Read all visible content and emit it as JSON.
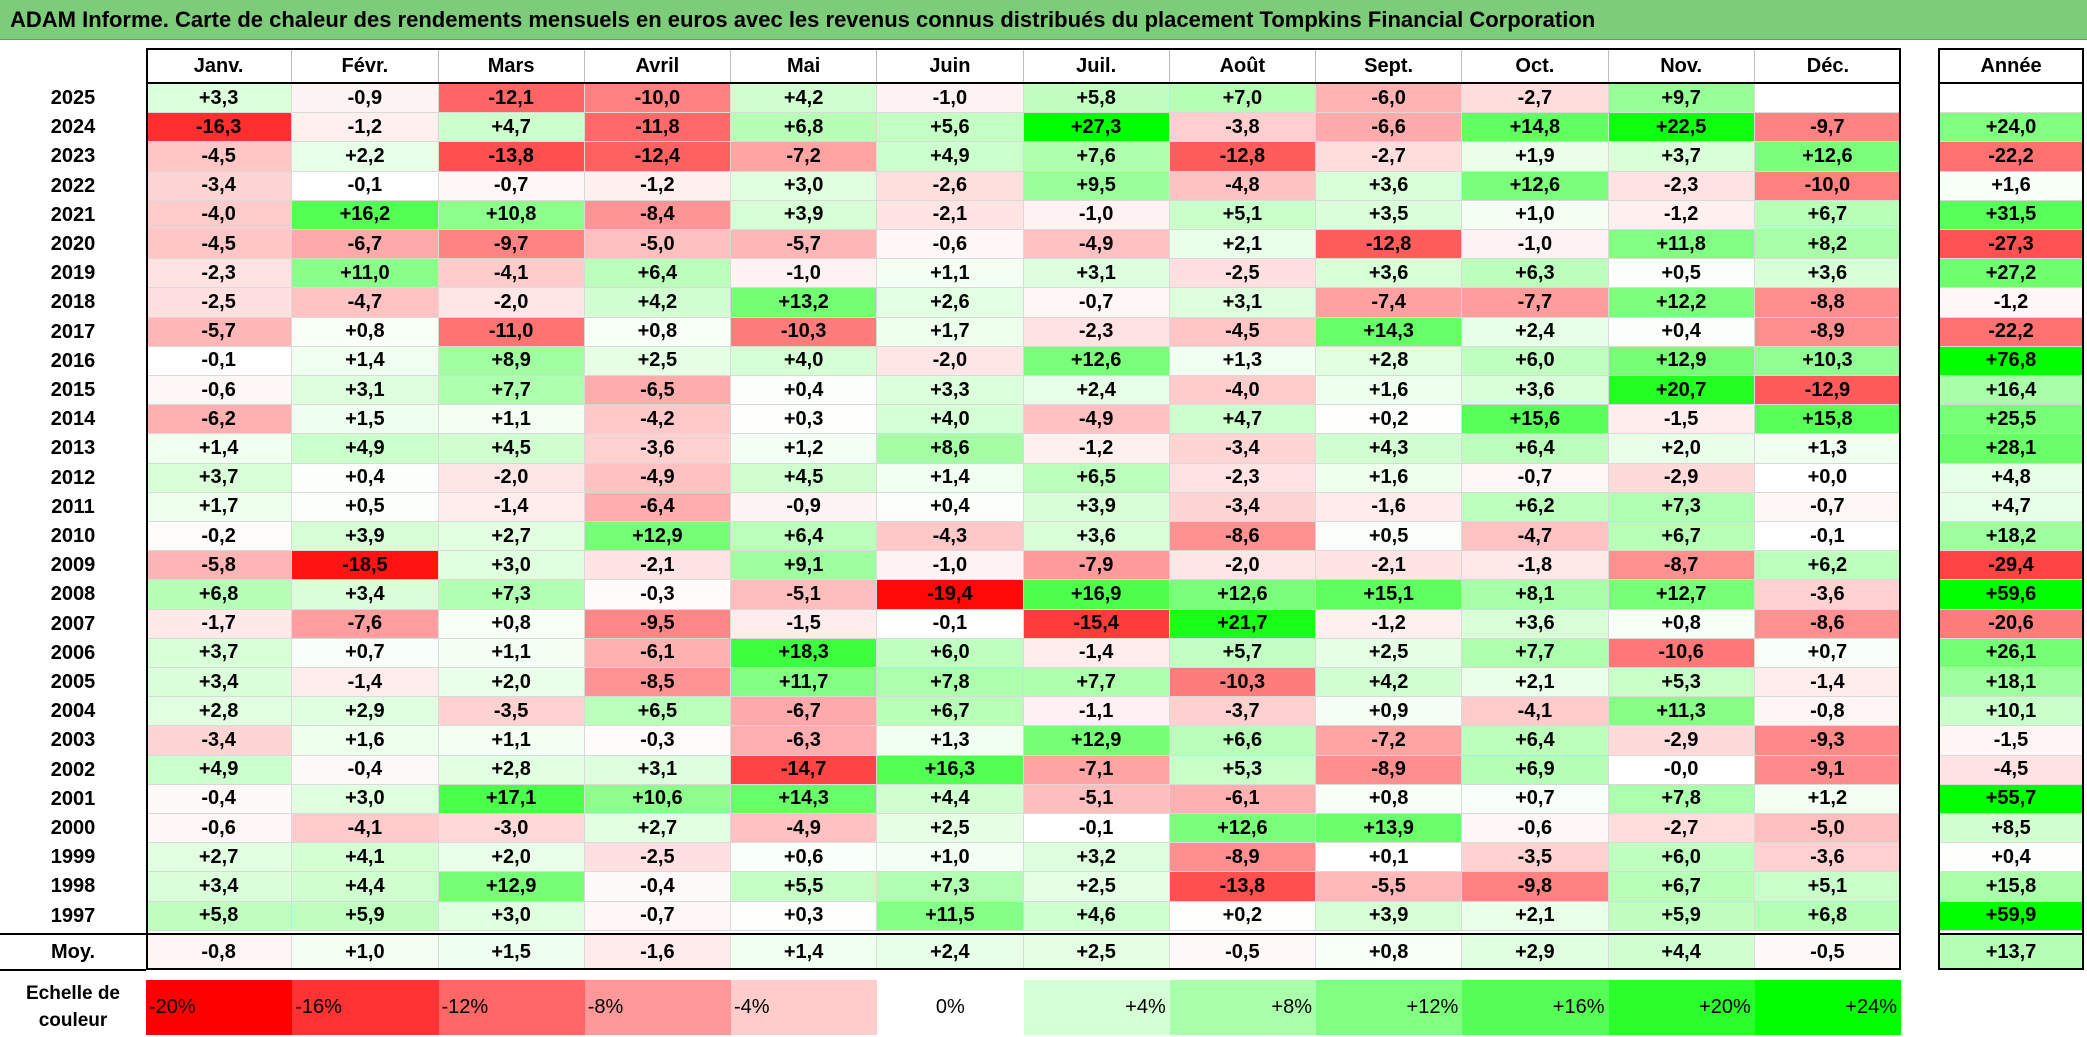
{
  "title": "ADAM Informe. Carte de chaleur des rendements mensuels en euros avec les revenus connus distribués du placement Tompkins Financial Corporation",
  "chart_data": {
    "type": "heatmap",
    "months": [
      "Janv.",
      "Févr.",
      "Mars",
      "Avril",
      "Mai",
      "Juin",
      "Juil.",
      "Août",
      "Sept.",
      "Oct.",
      "Nov.",
      "Déc."
    ],
    "year_column_label": "Année",
    "rows": [
      {
        "year": "2025",
        "values": [
          "+3,3",
          "-0,9",
          "-12,1",
          "-10,0",
          "+4,2",
          "-1,0",
          "+5,8",
          "+7,0",
          "-6,0",
          "-2,7",
          "+9,7",
          ""
        ],
        "annual": ""
      },
      {
        "year": "2024",
        "values": [
          "-16,3",
          "-1,2",
          "+4,7",
          "-11,8",
          "+6,8",
          "+5,6",
          "+27,3",
          "-3,8",
          "-6,6",
          "+14,8",
          "+22,5",
          "-9,7"
        ],
        "annual": "+24,0"
      },
      {
        "year": "2023",
        "values": [
          "-4,5",
          "+2,2",
          "-13,8",
          "-12,4",
          "-7,2",
          "+4,9",
          "+7,6",
          "-12,8",
          "-2,7",
          "+1,9",
          "+3,7",
          "+12,6"
        ],
        "annual": "-22,2"
      },
      {
        "year": "2022",
        "values": [
          "-3,4",
          "-0,1",
          "-0,7",
          "-1,2",
          "+3,0",
          "-2,6",
          "+9,5",
          "-4,8",
          "+3,6",
          "+12,6",
          "-2,3",
          "-10,0"
        ],
        "annual": "+1,6"
      },
      {
        "year": "2021",
        "values": [
          "-4,0",
          "+16,2",
          "+10,8",
          "-8,4",
          "+3,9",
          "-2,1",
          "-1,0",
          "+5,1",
          "+3,5",
          "+1,0",
          "-1,2",
          "+6,7"
        ],
        "annual": "+31,5"
      },
      {
        "year": "2020",
        "values": [
          "-4,5",
          "-6,7",
          "-9,7",
          "-5,0",
          "-5,7",
          "-0,6",
          "-4,9",
          "+2,1",
          "-12,8",
          "-1,0",
          "+11,8",
          "+8,2"
        ],
        "annual": "-27,3"
      },
      {
        "year": "2019",
        "values": [
          "-2,3",
          "+11,0",
          "-4,1",
          "+6,4",
          "-1,0",
          "+1,1",
          "+3,1",
          "-2,5",
          "+3,6",
          "+6,3",
          "+0,5",
          "+3,6"
        ],
        "annual": "+27,2"
      },
      {
        "year": "2018",
        "values": [
          "-2,5",
          "-4,7",
          "-2,0",
          "+4,2",
          "+13,2",
          "+2,6",
          "-0,7",
          "+3,1",
          "-7,4",
          "-7,7",
          "+12,2",
          "-8,8"
        ],
        "annual": "-1,2"
      },
      {
        "year": "2017",
        "values": [
          "-5,7",
          "+0,8",
          "-11,0",
          "+0,8",
          "-10,3",
          "+1,7",
          "-2,3",
          "-4,5",
          "+14,3",
          "+2,4",
          "+0,4",
          "-8,9"
        ],
        "annual": "-22,2"
      },
      {
        "year": "2016",
        "values": [
          "-0,1",
          "+1,4",
          "+8,9",
          "+2,5",
          "+4,0",
          "-2,0",
          "+12,6",
          "+1,3",
          "+2,8",
          "+6,0",
          "+12,9",
          "+10,3"
        ],
        "annual": "+76,8"
      },
      {
        "year": "2015",
        "values": [
          "-0,6",
          "+3,1",
          "+7,7",
          "-6,5",
          "+0,4",
          "+3,3",
          "+2,4",
          "-4,0",
          "+1,6",
          "+3,6",
          "+20,7",
          "-12,9"
        ],
        "annual": "+16,4"
      },
      {
        "year": "2014",
        "values": [
          "-6,2",
          "+1,5",
          "+1,1",
          "-4,2",
          "+0,3",
          "+4,0",
          "-4,9",
          "+4,7",
          "+0,2",
          "+15,6",
          "-1,5",
          "+15,8"
        ],
        "annual": "+25,5"
      },
      {
        "year": "2013",
        "values": [
          "+1,4",
          "+4,9",
          "+4,5",
          "-3,6",
          "+1,2",
          "+8,6",
          "-1,2",
          "-3,4",
          "+4,3",
          "+6,4",
          "+2,0",
          "+1,3"
        ],
        "annual": "+28,1"
      },
      {
        "year": "2012",
        "values": [
          "+3,7",
          "+0,4",
          "-2,0",
          "-4,9",
          "+4,5",
          "+1,4",
          "+6,5",
          "-2,3",
          "+1,6",
          "-0,7",
          "-2,9",
          "+0,0"
        ],
        "annual": "+4,8"
      },
      {
        "year": "2011",
        "values": [
          "+1,7",
          "+0,5",
          "-1,4",
          "-6,4",
          "-0,9",
          "+0,4",
          "+3,9",
          "-3,4",
          "-1,6",
          "+6,2",
          "+7,3",
          "-0,7"
        ],
        "annual": "+4,7"
      },
      {
        "year": "2010",
        "values": [
          "-0,2",
          "+3,9",
          "+2,7",
          "+12,9",
          "+6,4",
          "-4,3",
          "+3,6",
          "-8,6",
          "+0,5",
          "-4,7",
          "+6,7",
          "-0,1"
        ],
        "annual": "+18,2"
      },
      {
        "year": "2009",
        "values": [
          "-5,8",
          "-18,5",
          "+3,0",
          "-2,1",
          "+9,1",
          "-1,0",
          "-7,9",
          "-2,0",
          "-2,1",
          "-1,8",
          "-8,7",
          "+6,2"
        ],
        "annual": "-29,4"
      },
      {
        "year": "2008",
        "values": [
          "+6,8",
          "+3,4",
          "+7,3",
          "-0,3",
          "-5,1",
          "-19,4",
          "+16,9",
          "+12,6",
          "+15,1",
          "+8,1",
          "+12,7",
          "-3,6"
        ],
        "annual": "+59,6"
      },
      {
        "year": "2007",
        "values": [
          "-1,7",
          "-7,6",
          "+0,8",
          "-9,5",
          "-1,5",
          "-0,1",
          "-15,4",
          "+21,7",
          "-1,2",
          "+3,6",
          "+0,8",
          "-8,6"
        ],
        "annual": "-20,6"
      },
      {
        "year": "2006",
        "values": [
          "+3,7",
          "+0,7",
          "+1,1",
          "-6,1",
          "+18,3",
          "+6,0",
          "-1,4",
          "+5,7",
          "+2,5",
          "+7,7",
          "-10,6",
          "+0,7"
        ],
        "annual": "+26,1"
      },
      {
        "year": "2005",
        "values": [
          "+3,4",
          "-1,4",
          "+2,0",
          "-8,5",
          "+11,7",
          "+7,8",
          "+7,7",
          "-10,3",
          "+4,2",
          "+2,1",
          "+5,3",
          "-1,4"
        ],
        "annual": "+18,1"
      },
      {
        "year": "2004",
        "values": [
          "+2,8",
          "+2,9",
          "-3,5",
          "+6,5",
          "-6,7",
          "+6,7",
          "-1,1",
          "-3,7",
          "+0,9",
          "-4,1",
          "+11,3",
          "-0,8"
        ],
        "annual": "+10,1"
      },
      {
        "year": "2003",
        "values": [
          "-3,4",
          "+1,6",
          "+1,1",
          "-0,3",
          "-6,3",
          "+1,3",
          "+12,9",
          "+6,6",
          "-7,2",
          "+6,4",
          "-2,9",
          "-9,3"
        ],
        "annual": "-1,5"
      },
      {
        "year": "2002",
        "values": [
          "+4,9",
          "-0,4",
          "+2,8",
          "+3,1",
          "-14,7",
          "+16,3",
          "-7,1",
          "+5,3",
          "-8,9",
          "+6,9",
          "-0,0",
          "-9,1"
        ],
        "annual": "-4,5"
      },
      {
        "year": "2001",
        "values": [
          "-0,4",
          "+3,0",
          "+17,1",
          "+10,6",
          "+14,3",
          "+4,4",
          "-5,1",
          "-6,1",
          "+0,8",
          "+0,7",
          "+7,8",
          "+1,2"
        ],
        "annual": "+55,7"
      },
      {
        "year": "2000",
        "values": [
          "-0,6",
          "-4,1",
          "-3,0",
          "+2,7",
          "-4,9",
          "+2,5",
          "-0,1",
          "+12,6",
          "+13,9",
          "-0,6",
          "-2,7",
          "-5,0"
        ],
        "annual": "+8,5"
      },
      {
        "year": "1999",
        "values": [
          "+2,7",
          "+4,1",
          "+2,0",
          "-2,5",
          "+0,6",
          "+1,0",
          "+3,2",
          "-8,9",
          "+0,1",
          "-3,5",
          "+6,0",
          "-3,6"
        ],
        "annual": "+0,4"
      },
      {
        "year": "1998",
        "values": [
          "+3,4",
          "+4,4",
          "+12,9",
          "-0,4",
          "+5,5",
          "+7,3",
          "+2,5",
          "-13,8",
          "-5,5",
          "-9,8",
          "+6,7",
          "+5,1"
        ],
        "annual": "+15,8"
      },
      {
        "year": "1997",
        "values": [
          "+5,8",
          "+5,9",
          "+3,0",
          "-0,7",
          "+0,3",
          "+11,5",
          "+4,6",
          "+0,2",
          "+3,9",
          "+2,1",
          "+5,9",
          "+6,8"
        ],
        "annual": "+59,9"
      }
    ],
    "average": {
      "label": "Moy.",
      "values": [
        "-0,8",
        "+1,0",
        "+1,5",
        "-1,6",
        "+1,4",
        "+2,4",
        "+2,5",
        "-0,5",
        "+0,8",
        "+2,9",
        "+4,4",
        "-0,5"
      ],
      "annual": "+13,7"
    },
    "color_scale": {
      "label_line1": "Echelle de",
      "label_line2": "couleur",
      "stops": [
        "-20%",
        "-16%",
        "-12%",
        "-8%",
        "-4%",
        "0%",
        "+4%",
        "+8%",
        "+12%",
        "+16%",
        "+20%",
        "+24%"
      ],
      "min_value": -20,
      "max_value": 24,
      "negative_color": "#ff0000",
      "positive_color": "#00ff00",
      "neutral_color": "#ffffff"
    }
  }
}
